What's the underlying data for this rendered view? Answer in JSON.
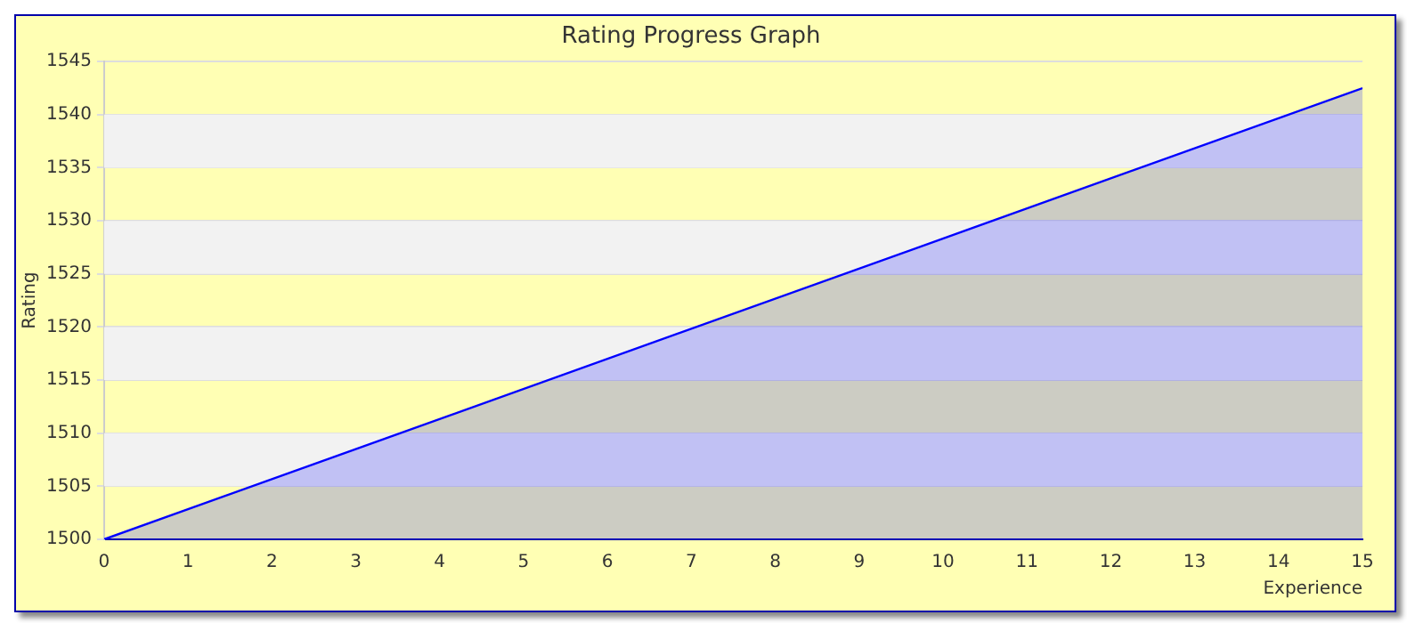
{
  "chart_data": {
    "type": "area",
    "title": "Rating Progress Graph",
    "xlabel": "Experience",
    "ylabel": "Rating",
    "x": [
      0,
      15
    ],
    "series": [
      {
        "color": "#0000ff",
        "values": [
          1500,
          1542.5
        ]
      }
    ],
    "xlim": [
      0,
      15
    ],
    "xticks": [
      0,
      1,
      2,
      3,
      4,
      5,
      6,
      7,
      8,
      9,
      10,
      11,
      12,
      13,
      14,
      15
    ],
    "ylim": [
      1500,
      1545
    ],
    "yticks": [
      1500,
      1505,
      1510,
      1515,
      1520,
      1525,
      1530,
      1535,
      1540,
      1545
    ],
    "grid": "y",
    "legend": false,
    "marker": "none",
    "line_style": "solid"
  }
}
